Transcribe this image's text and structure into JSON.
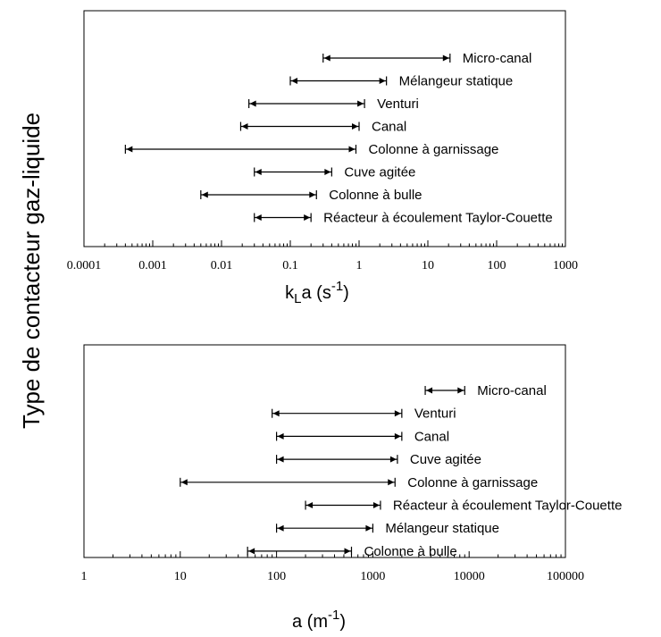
{
  "y_axis_title": "Type de contacteur gaz-liquide",
  "chart_data": [
    {
      "type": "range",
      "xscale": "log",
      "xlim": [
        0.0001,
        1000
      ],
      "xlabel": {
        "base": "k",
        "sub": "L",
        "mid": "a (s",
        "sup": "-1",
        "end": ")"
      },
      "xtick_labels": [
        "0.0001",
        "0.001",
        "0.01",
        "0.1",
        "1",
        "10",
        "100",
        "1000"
      ],
      "xtick_values": [
        0.0001,
        0.001,
        0.01,
        0.1,
        1,
        10,
        100,
        1000
      ],
      "ranges": [
        {
          "label": "Micro-canal",
          "low": 0.3,
          "high": 21
        },
        {
          "label": "Mélangeur statique",
          "low": 0.1,
          "high": 2.5
        },
        {
          "label": "Venturi",
          "low": 0.025,
          "high": 1.2
        },
        {
          "label": "Canal",
          "low": 0.019,
          "high": 1.0
        },
        {
          "label": "Colonne à garnissage",
          "low": 0.0004,
          "high": 0.9
        },
        {
          "label": "Cuve agitée",
          "low": 0.03,
          "high": 0.4
        },
        {
          "label": "Colonne à bulle",
          "low": 0.005,
          "high": 0.24
        },
        {
          "label": "Réacteur à écoulement Taylor-Couette",
          "low": 0.03,
          "high": 0.2
        }
      ]
    },
    {
      "type": "range",
      "xscale": "log",
      "xlim": [
        1,
        100000
      ],
      "xlabel": {
        "base": "a (m",
        "sup": "-1",
        "end": ")"
      },
      "xtick_labels": [
        "1",
        "10",
        "100",
        "1000",
        "10000",
        "100000"
      ],
      "xtick_values": [
        1,
        10,
        100,
        1000,
        10000,
        100000
      ],
      "ranges": [
        {
          "label": "Micro-canal",
          "low": 3500,
          "high": 9000
        },
        {
          "label": "Venturi",
          "low": 90,
          "high": 2000
        },
        {
          "label": "Canal",
          "low": 100,
          "high": 2000
        },
        {
          "label": "Cuve agitée",
          "low": 100,
          "high": 1800
        },
        {
          "label": "Colonne à garnissage",
          "low": 10,
          "high": 1700
        },
        {
          "label": "Réacteur à écoulement Taylor-Couette",
          "low": 200,
          "high": 1200
        },
        {
          "label": "Mélangeur statique",
          "low": 100,
          "high": 1000
        },
        {
          "label": "Colonne à bulle",
          "low": 50,
          "high": 600
        }
      ]
    }
  ]
}
